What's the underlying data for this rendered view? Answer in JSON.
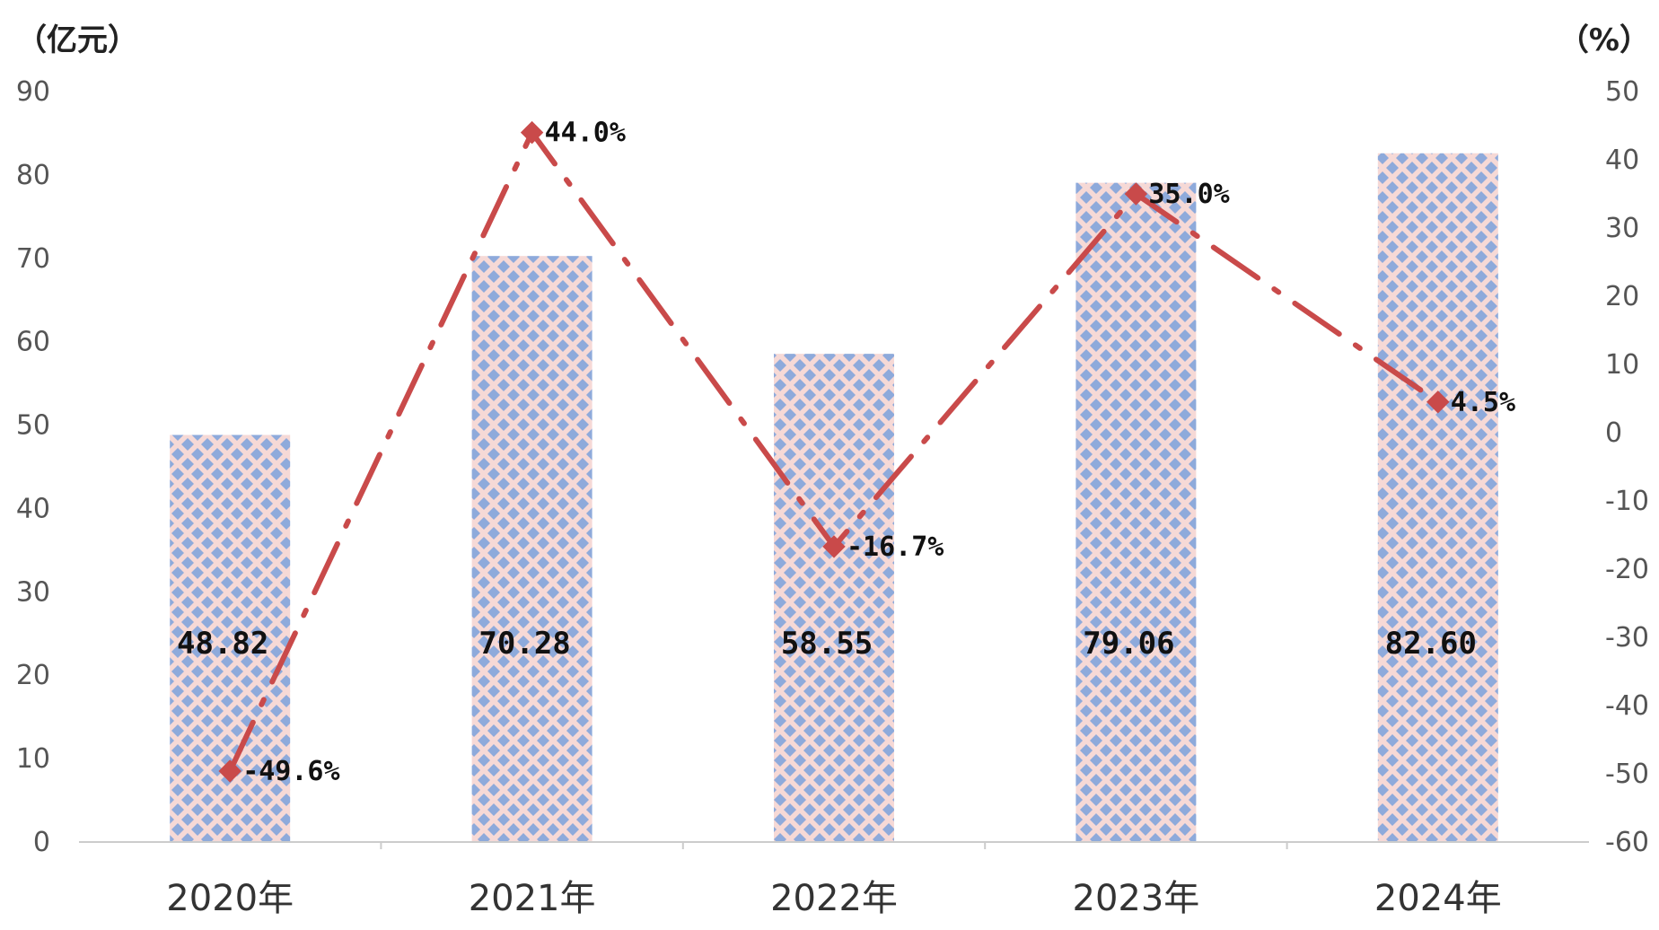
{
  "chart_data": {
    "type": "bar",
    "categories": [
      "2020年",
      "2021年",
      "2022年",
      "2023年",
      "2024年"
    ],
    "bar_series": {
      "values": [
        48.82,
        70.28,
        58.55,
        79.06,
        82.6
      ],
      "labels": [
        "48.82",
        "70.28",
        "58.55",
        "79.06",
        "82.60"
      ]
    },
    "line_series": {
      "values": [
        -49.6,
        44.0,
        -16.7,
        35.0,
        4.5
      ],
      "labels": [
        "-49.6%",
        "44.0%",
        "-16.7%",
        "35.0%",
        "4.5%"
      ]
    },
    "left_axis": {
      "unit": "（亿元）",
      "ylim": [
        0,
        90
      ],
      "ticks": [
        "0",
        "10",
        "20",
        "30",
        "40",
        "50",
        "60",
        "70",
        "80",
        "90"
      ]
    },
    "right_axis": {
      "unit": "（%）",
      "ylim": [
        -60,
        50
      ],
      "ticks": [
        "-60",
        "-50",
        "-40",
        "-30",
        "-20",
        "-10",
        "0",
        "10",
        "20",
        "30",
        "40",
        "50"
      ]
    },
    "grid": false,
    "legend": "none",
    "colors": {
      "bar_base": "#f6d9d6",
      "bar_pattern": "#8eaadb",
      "line": "#c94a4a",
      "axis": "#cccccc"
    }
  }
}
